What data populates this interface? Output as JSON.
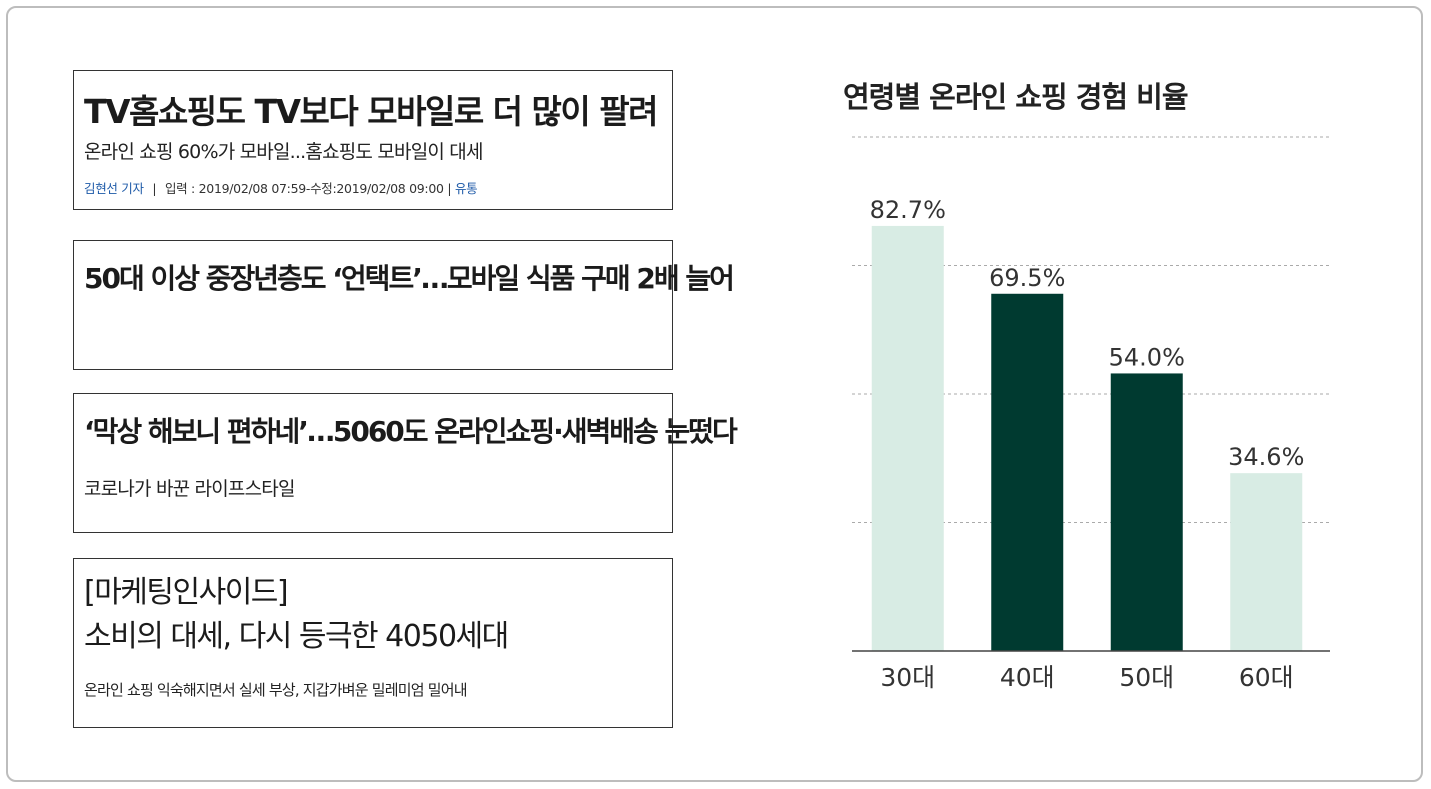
{
  "articles": [
    {
      "headline": "TV홈쇼핑도 TV보다 모바일로 더 많이 팔려",
      "subheadline": "온라인 쇼핑 60%가 모바일...홈쇼핑도 모바일이 대세",
      "author": "김현선 기자",
      "separator": "|",
      "dates": "입력 : 2019/02/08 07:59-수정:2019/02/08 09:00 |",
      "tag": "유통"
    },
    {
      "headline": "50대 이상 중장년층도 ‘언택트’…모바일 식품 구매 2배 늘어"
    },
    {
      "headline": "‘막상 해보니 편하네’…5060도 온라인쇼핑·새벽배송 눈떴다",
      "subheadline": "코로나가 바꾼 라이프스타일"
    },
    {
      "headline_line1": "[마케팅인사이드]",
      "headline_line2": "소비의 대세, 다시 등극한 4050세대",
      "subheadline": "온라인 쇼핑 익숙해지면서 실세 부상, 지갑가벼운 밀레미엄 밀어내"
    }
  ],
  "chart_data": {
    "type": "bar",
    "title": "연령별 온라인 쇼핑 경험 비율",
    "categories": [
      "30대",
      "40대",
      "50대",
      "60대"
    ],
    "values": [
      82.7,
      69.5,
      54.0,
      34.6
    ],
    "value_labels": [
      "82.7%",
      "69.5%",
      "54.0%",
      "34.6%"
    ],
    "bar_colors": [
      "#d8ece4",
      "#003a30",
      "#003a30",
      "#d8ece4"
    ],
    "ylim": [
      0,
      100
    ],
    "grid": "dashed horizontal",
    "xlabel": "",
    "ylabel": ""
  }
}
